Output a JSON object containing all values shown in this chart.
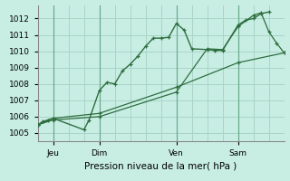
{
  "xlabel": "Pression niveau de la mer( hPa )",
  "bg_color": "#c8eee4",
  "grid_color": "#aad4c8",
  "line_color": "#2d6e3e",
  "ylim": [
    1004.5,
    1012.8
  ],
  "xlim": [
    0,
    96
  ],
  "yticks": [
    1005,
    1006,
    1007,
    1008,
    1009,
    1010,
    1011,
    1012
  ],
  "xtick_positions": [
    6,
    24,
    54,
    78
  ],
  "xtick_labels": [
    "Jeu",
    "Dim",
    "Ven",
    "Sam"
  ],
  "vlines": [
    6,
    24,
    54,
    78
  ],
  "series1_x": [
    0,
    2,
    4,
    6,
    18,
    20,
    24,
    27,
    30,
    33,
    36,
    39,
    42,
    45,
    48,
    51,
    54,
    57,
    60,
    66,
    69,
    72,
    78,
    81,
    84,
    87,
    90
  ],
  "series1_y": [
    1005.5,
    1005.7,
    1005.8,
    1005.9,
    1005.2,
    1005.8,
    1007.6,
    1008.1,
    1008.0,
    1008.8,
    1009.2,
    1009.7,
    1010.3,
    1010.8,
    1010.8,
    1010.85,
    1011.7,
    1011.3,
    1010.15,
    1010.1,
    1010.05,
    1010.05,
    1011.6,
    1011.9,
    1012.0,
    1012.3,
    1012.4
  ],
  "series2_x": [
    0,
    6,
    24,
    54,
    78,
    96
  ],
  "series2_y": [
    1005.5,
    1005.9,
    1006.2,
    1007.8,
    1009.3,
    1009.9
  ],
  "series3_x": [
    0,
    6,
    24,
    54,
    66,
    72,
    78,
    84,
    87,
    90,
    93,
    96
  ],
  "series3_y": [
    1005.5,
    1005.8,
    1006.0,
    1007.5,
    1010.15,
    1010.1,
    1011.5,
    1012.2,
    1012.35,
    1011.2,
    1010.5,
    1009.9
  ]
}
